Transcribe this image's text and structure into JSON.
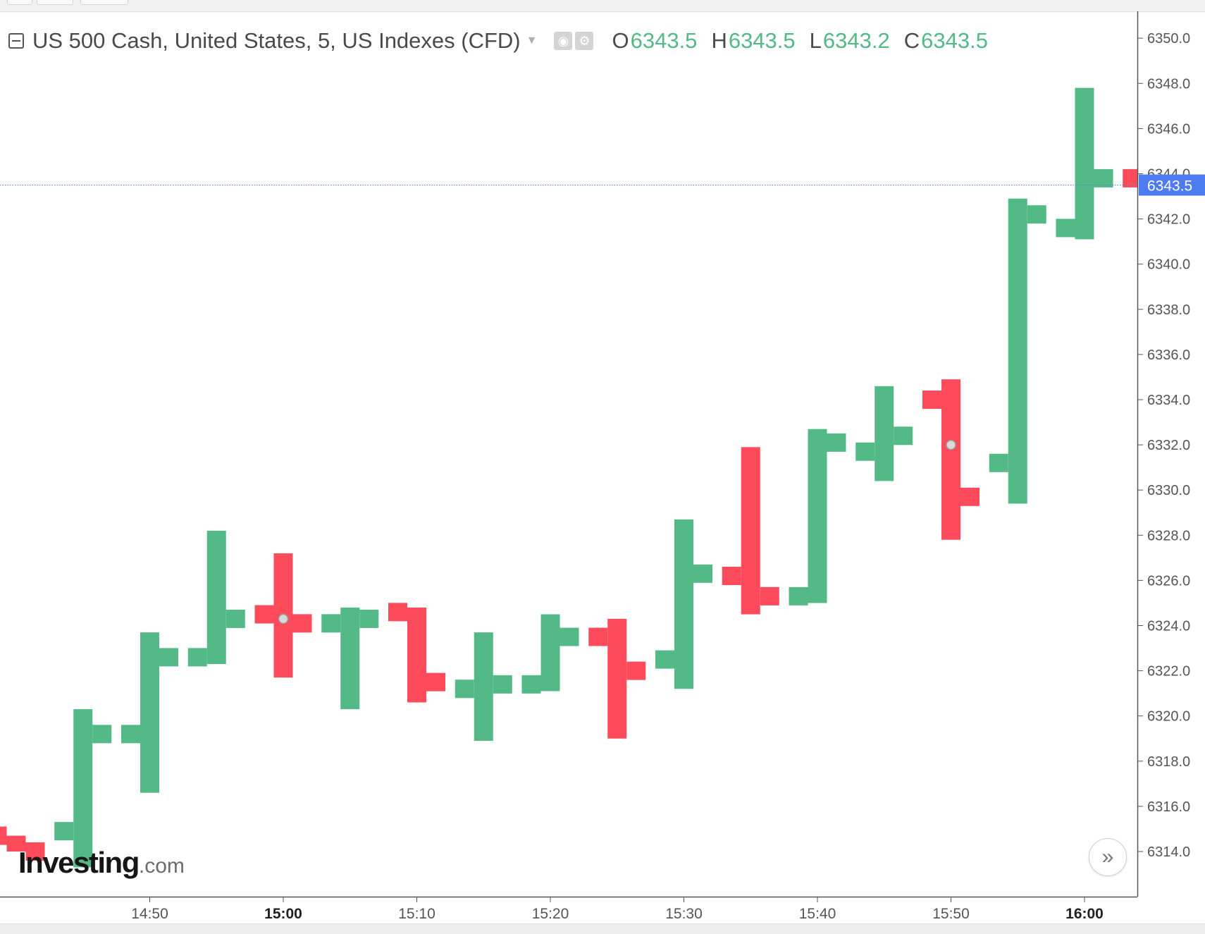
{
  "legend": {
    "symbol": "US 500 Cash, United States, 5, US Indexes (CFD)",
    "open_label": "O",
    "open": "6343.5",
    "high_label": "H",
    "high": "6343.5",
    "low_label": "L",
    "low": "6343.2",
    "close_label": "C",
    "close": "6343.5"
  },
  "watermark": {
    "brand": "Investing",
    "suffix": ".com"
  },
  "scroll_button": {
    "glyph": "»"
  },
  "colors": {
    "up": "#53b987",
    "down": "#fd4b5c",
    "last_price": "#4c7cf0",
    "axis_text": "#555555"
  },
  "chart_data": {
    "type": "ohlc",
    "title": "",
    "xlabel": "",
    "ylabel": "",
    "ylim": [
      6312,
      6351.3
    ],
    "y_ticks": [
      "6314.0",
      "6316.0",
      "6318.0",
      "6320.0",
      "6322.0",
      "6324.0",
      "6326.0",
      "6328.0",
      "6330.0",
      "6332.0",
      "6334.0",
      "6336.0",
      "6338.0",
      "6340.0",
      "6342.0",
      "6344.0",
      "6346.0",
      "6348.0",
      "6350.0"
    ],
    "x_ticks": [
      {
        "label": "14:50",
        "bold": false
      },
      {
        "label": "15:00",
        "bold": true
      },
      {
        "label": "15:10",
        "bold": false
      },
      {
        "label": "15:20",
        "bold": false
      },
      {
        "label": "15:30",
        "bold": false
      },
      {
        "label": "15:40",
        "bold": false
      },
      {
        "label": "15:50",
        "bold": false
      },
      {
        "label": "16:00",
        "bold": true
      }
    ],
    "first_bar_time": "14:40",
    "bar_interval_minutes": 5,
    "last_price": "6343.5",
    "grid": false,
    "bars": [
      {
        "open": 6314.7,
        "high": 6314.7,
        "low": 6314.0,
        "close": 6314.0
      },
      {
        "open": 6314.9,
        "high": 6320.3,
        "low": 6313.3,
        "close": 6319.2
      },
      {
        "open": 6319.2,
        "high": 6323.7,
        "low": 6316.6,
        "close": 6322.6
      },
      {
        "open": 6322.6,
        "high": 6328.2,
        "low": 6322.3,
        "close": 6324.3
      },
      {
        "open": 6324.5,
        "high": 6327.2,
        "low": 6321.7,
        "close": 6324.1
      },
      {
        "open": 6324.1,
        "high": 6324.8,
        "low": 6320.3,
        "close": 6324.3
      },
      {
        "open": 6324.6,
        "high": 6324.8,
        "low": 6320.6,
        "close": 6321.5
      },
      {
        "open": 6321.2,
        "high": 6323.7,
        "low": 6318.9,
        "close": 6321.4
      },
      {
        "open": 6321.4,
        "high": 6324.5,
        "low": 6321.1,
        "close": 6323.5
      },
      {
        "open": 6323.5,
        "high": 6324.3,
        "low": 6319.0,
        "close": 6322.0
      },
      {
        "open": 6322.5,
        "high": 6328.7,
        "low": 6321.2,
        "close": 6326.3
      },
      {
        "open": 6326.2,
        "high": 6331.9,
        "low": 6324.5,
        "close": 6325.3
      },
      {
        "open": 6325.3,
        "high": 6332.7,
        "low": 6325.0,
        "close": 6332.1
      },
      {
        "open": 6331.7,
        "high": 6334.6,
        "low": 6330.4,
        "close": 6332.4
      },
      {
        "open": 6334.0,
        "high": 6334.9,
        "low": 6327.8,
        "close": 6329.7
      },
      {
        "open": 6331.2,
        "high": 6342.9,
        "low": 6329.4,
        "close": 6342.2
      },
      {
        "open": 6341.6,
        "high": 6347.8,
        "low": 6341.1,
        "close": 6343.8
      },
      {
        "open": 6343.8,
        "high": 6343.8,
        "low": 6342.8,
        "close": 6343.3
      }
    ]
  }
}
